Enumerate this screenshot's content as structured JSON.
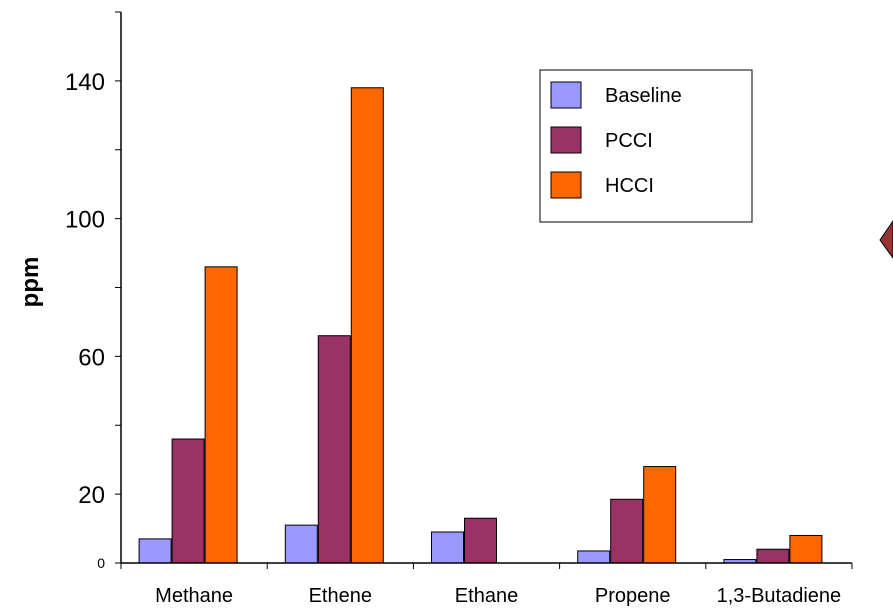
{
  "chart_data": {
    "type": "bar",
    "title": "",
    "xlabel": "",
    "ylabel": "ppm",
    "ylim": [
      0,
      160
    ],
    "yticks": [
      {
        "value": 0,
        "label": "0"
      },
      {
        "value": 20,
        "label": "20"
      },
      {
        "value": 60,
        "label": "60"
      },
      {
        "value": 100,
        "label": "100"
      },
      {
        "value": 140,
        "label": "140"
      }
    ],
    "categories": [
      "Methane",
      "Ethene",
      "Ethane",
      "Propene",
      "1,3-Butadiene"
    ],
    "series": [
      {
        "name": "Baseline",
        "color": "#9999FF",
        "values": [
          7,
          11,
          9,
          3.5,
          1
        ]
      },
      {
        "name": "PCCI",
        "color": "#993366",
        "values": [
          36,
          66,
          13,
          18.5,
          4
        ]
      },
      {
        "name": "HCCI",
        "color": "#FF6600",
        "values": [
          86,
          138,
          0,
          28,
          8
        ]
      }
    ],
    "legend_position": "top-right",
    "grid": false
  }
}
